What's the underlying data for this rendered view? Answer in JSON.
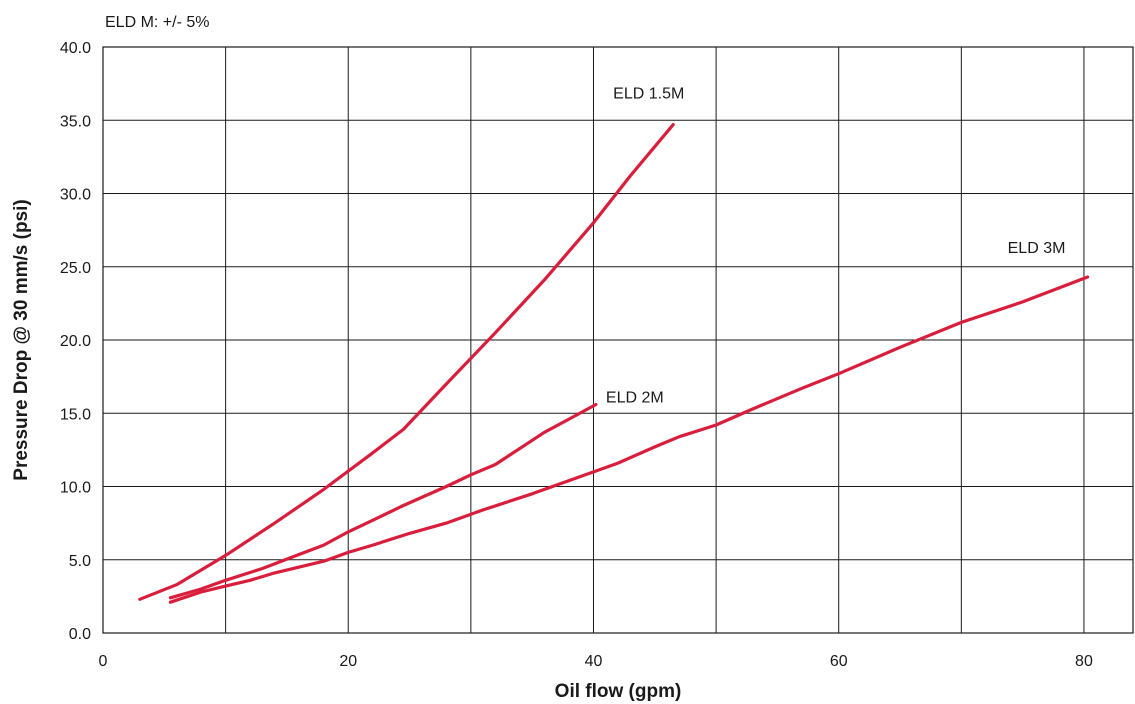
{
  "chart_data": {
    "type": "line",
    "note": "ELD M: +/- 5%",
    "xlabel": "Oil flow (gpm)",
    "ylabel": "Pressure Drop @  30 mm/s (psi)",
    "xlim": [
      0,
      84
    ],
    "ylim": [
      0,
      40
    ],
    "x_ticks": [
      "0",
      "20",
      "40",
      "60",
      "80"
    ],
    "y_ticks": [
      "0.0",
      "5.0",
      "10.0",
      "15.0",
      "20.0",
      "25.0",
      "30.0",
      "35.0",
      "40.0"
    ],
    "x_grid_step": 10,
    "y_grid_step": 5,
    "grid": true,
    "line_color": "#d81e3c",
    "series": [
      {
        "name": "ELD 1.5M",
        "points": [
          [
            3,
            2.3
          ],
          [
            6,
            3.3
          ],
          [
            10,
            5.3
          ],
          [
            14,
            7.5
          ],
          [
            18,
            9.8
          ],
          [
            22,
            12.3
          ],
          [
            24.5,
            13.9
          ],
          [
            28,
            17
          ],
          [
            32,
            20.5
          ],
          [
            36,
            24.1
          ],
          [
            40,
            28
          ],
          [
            43,
            31.2
          ],
          [
            46.5,
            34.7
          ]
        ]
      },
      {
        "name": "ELD 2M",
        "points": [
          [
            5.5,
            2.4
          ],
          [
            8,
            3.0
          ],
          [
            10,
            3.6
          ],
          [
            13,
            4.4
          ],
          [
            15.5,
            5.2
          ],
          [
            18,
            6.0
          ],
          [
            20,
            6.9
          ],
          [
            22.5,
            7.9
          ],
          [
            24.5,
            8.7
          ],
          [
            28,
            10.0
          ],
          [
            30,
            10.8
          ],
          [
            32,
            11.5
          ],
          [
            34,
            12.6
          ],
          [
            36,
            13.7
          ],
          [
            38,
            14.6
          ],
          [
            40.2,
            15.6
          ]
        ]
      },
      {
        "name": "ELD 3M",
        "points": [
          [
            5.5,
            2.1
          ],
          [
            8,
            2.8
          ],
          [
            10,
            3.2
          ],
          [
            12,
            3.6
          ],
          [
            14,
            4.1
          ],
          [
            18,
            4.9
          ],
          [
            20,
            5.5
          ],
          [
            22,
            6.0
          ],
          [
            25,
            6.8
          ],
          [
            28,
            7.5
          ],
          [
            31,
            8.4
          ],
          [
            35,
            9.5
          ],
          [
            37,
            10.1
          ],
          [
            40,
            11.0
          ],
          [
            42,
            11.6
          ],
          [
            45,
            12.7
          ],
          [
            47,
            13.4
          ],
          [
            50,
            14.2
          ],
          [
            53,
            15.3
          ],
          [
            57,
            16.7
          ],
          [
            60,
            17.7
          ],
          [
            65,
            19.5
          ],
          [
            70,
            21.2
          ],
          [
            75,
            22.6
          ],
          [
            80.3,
            24.3
          ]
        ]
      }
    ]
  }
}
